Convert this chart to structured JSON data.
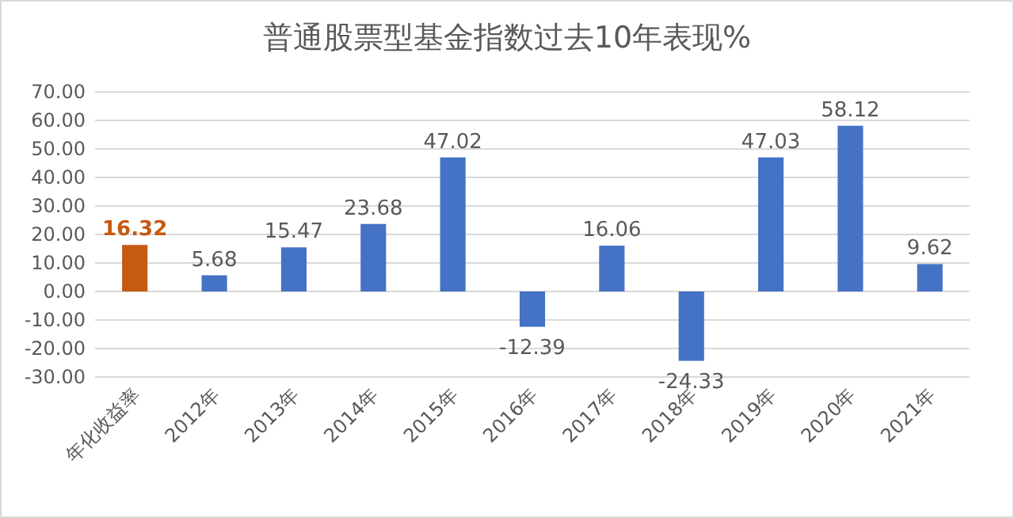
{
  "chart_data": {
    "type": "bar",
    "title": "普通股票型基金指数过去10年表现%",
    "categories": [
      "年化收益率",
      "2012年",
      "2013年",
      "2014年",
      "2015年",
      "2016年",
      "2017年",
      "2018年",
      "2019年",
      "2020年",
      "2021年"
    ],
    "values": [
      16.32,
      5.68,
      15.47,
      23.68,
      47.02,
      -12.39,
      16.06,
      -24.33,
      47.03,
      58.12,
      9.62
    ],
    "colors": [
      "#c55a11",
      "#4472c4",
      "#4472c4",
      "#4472c4",
      "#4472c4",
      "#4472c4",
      "#4472c4",
      "#4472c4",
      "#4472c4",
      "#4472c4",
      "#4472c4"
    ],
    "ylim": [
      -30,
      70
    ],
    "yticks": [
      {
        "value": -30,
        "label": "-30.00"
      },
      {
        "value": -20,
        "label": "-20.00"
      },
      {
        "value": -10,
        "label": "-10.00"
      },
      {
        "value": 0,
        "label": "0.00"
      },
      {
        "value": 10,
        "label": "10.00"
      },
      {
        "value": 20,
        "label": "20.00"
      },
      {
        "value": 30,
        "label": "30.00"
      },
      {
        "value": 40,
        "label": "40.00"
      },
      {
        "value": 50,
        "label": "50.00"
      },
      {
        "value": 60,
        "label": "60.00"
      },
      {
        "value": 70,
        "label": "70.00"
      }
    ],
    "grid": "y",
    "data_labels": true
  }
}
